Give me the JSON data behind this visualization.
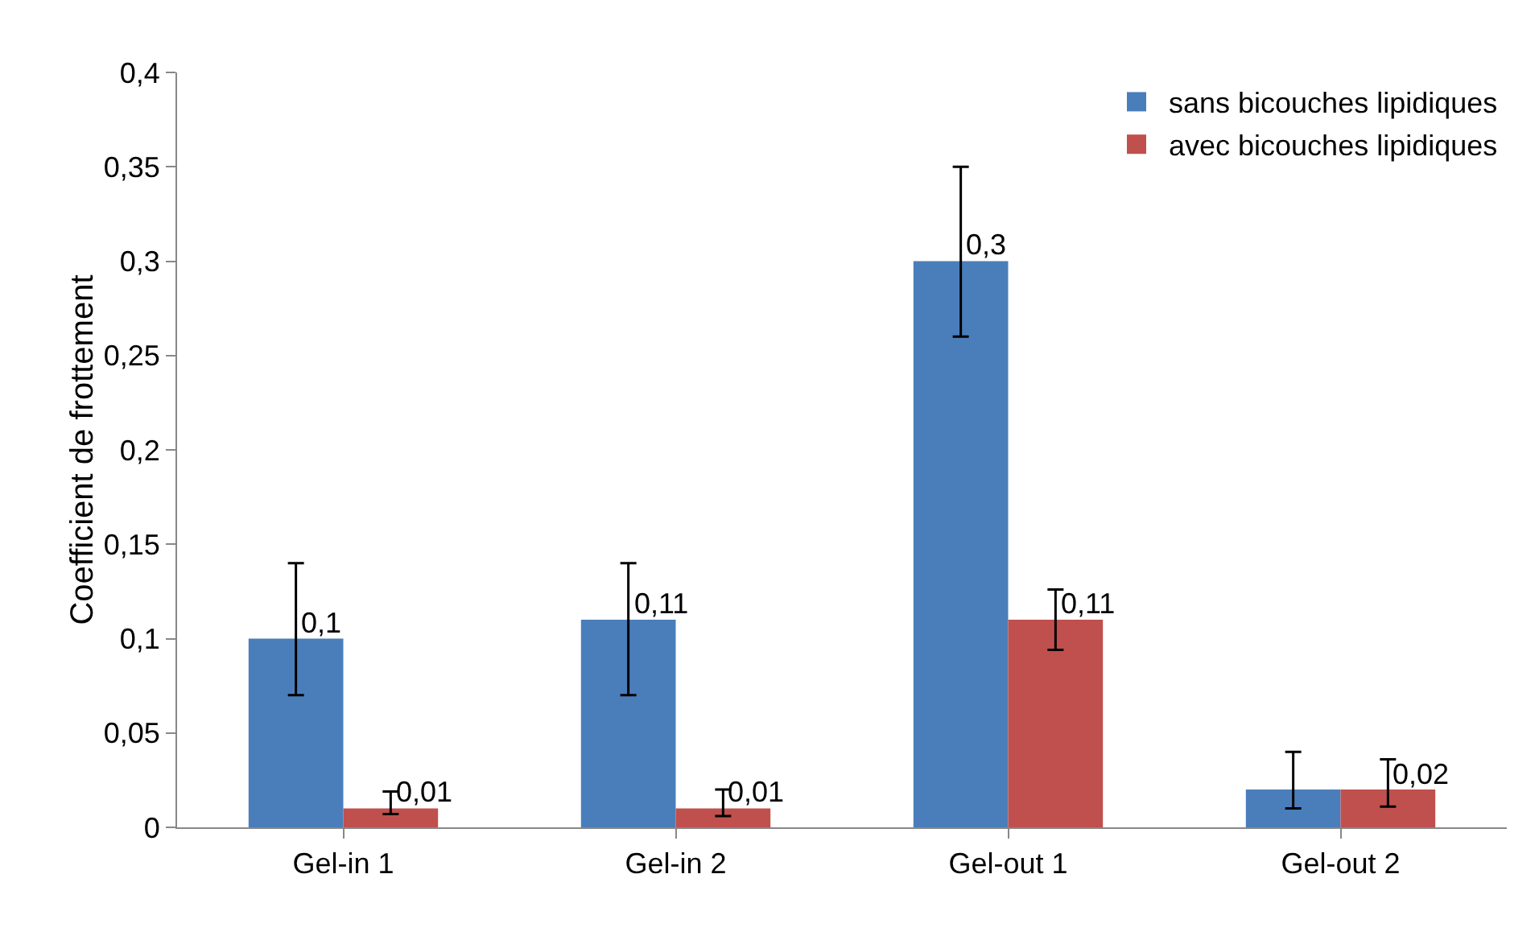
{
  "chart_data": {
    "type": "bar",
    "ylabel": "Coefficient de frottement",
    "categories": [
      "Gel-in 1",
      "Gel-in 2",
      "Gel-out 1",
      "Gel-out 2"
    ],
    "series": [
      {
        "name": "sans bicouches lipidiques",
        "color": "#4a7ebb",
        "values": [
          0.1,
          0.11,
          0.3,
          0.02
        ],
        "value_labels": [
          "0,1",
          "0,11",
          "0,3",
          null
        ],
        "errors": [
          [
            0.07,
            0.14
          ],
          [
            0.07,
            0.14
          ],
          [
            0.26,
            0.35
          ],
          [
            0.01,
            0.04
          ]
        ]
      },
      {
        "name": "avec bicouches lipidiques",
        "color": "#c0504d",
        "values": [
          0.01,
          0.01,
          0.11,
          0.02
        ],
        "value_labels": [
          "0,01",
          "0,01",
          "0,11",
          "0,02"
        ],
        "errors": [
          [
            0.007,
            0.019
          ],
          [
            0.006,
            0.02
          ],
          [
            0.094,
            0.126
          ],
          [
            0.011,
            0.036
          ]
        ]
      }
    ],
    "ylim": [
      0,
      0.4
    ],
    "yticks": [
      {
        "value": 0,
        "label": "0"
      },
      {
        "value": 0.05,
        "label": "0,05"
      },
      {
        "value": 0.1,
        "label": "0,1"
      },
      {
        "value": 0.15,
        "label": "0,15"
      },
      {
        "value": 0.2,
        "label": "0,2"
      },
      {
        "value": 0.25,
        "label": "0,25"
      },
      {
        "value": 0.3,
        "label": "0,3"
      },
      {
        "value": 0.35,
        "label": "0,35"
      },
      {
        "value": 0.4,
        "label": "0,4"
      }
    ],
    "grid": false,
    "legend": "top right"
  }
}
